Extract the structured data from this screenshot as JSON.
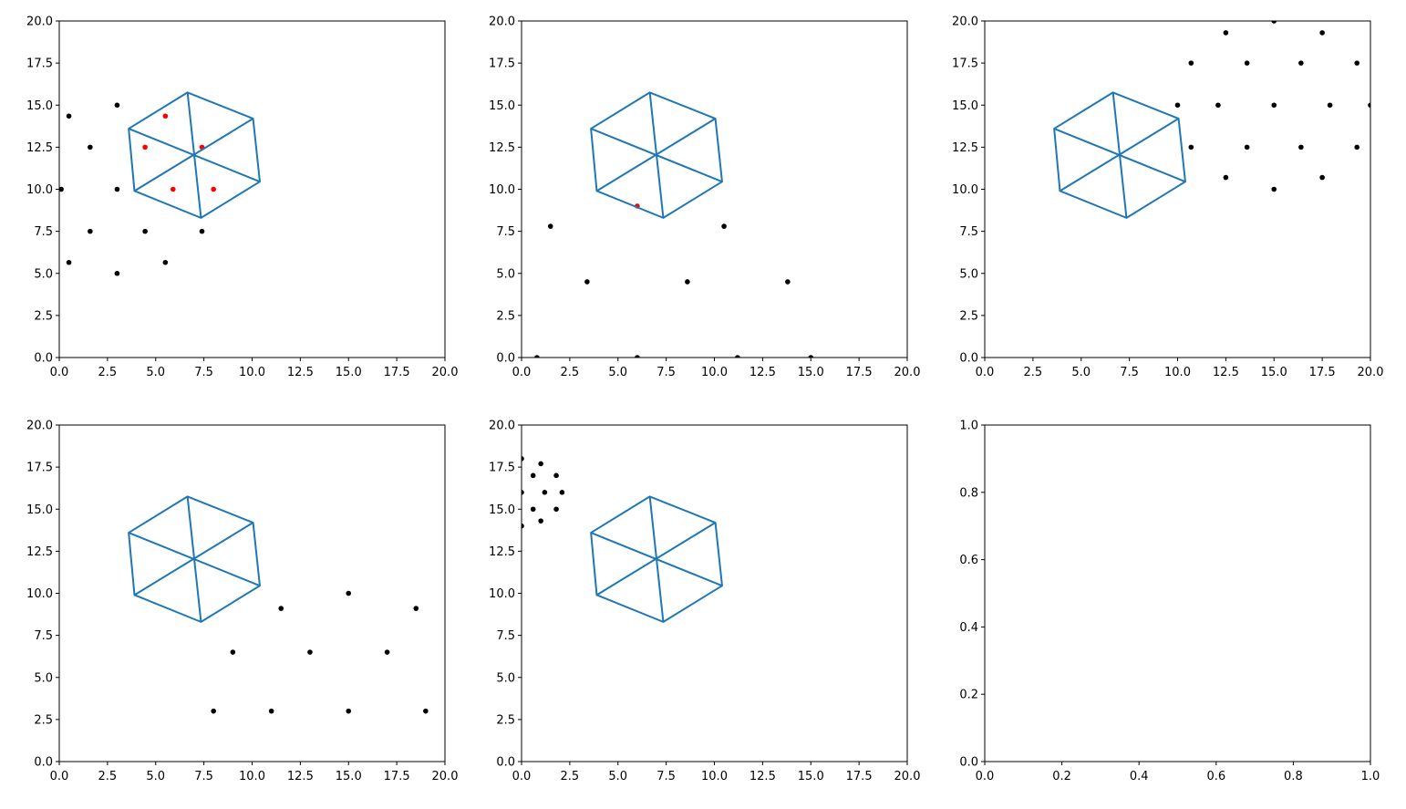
{
  "colors": {
    "hex_line": "#1f77b4",
    "point_black": "#000000",
    "point_red": "#ff0000"
  },
  "chart_data": [
    {
      "type": "scatter",
      "xlim": [
        0,
        20
      ],
      "ylim": [
        0,
        20
      ],
      "xticks": [
        "0.0",
        "2.5",
        "5.0",
        "7.5",
        "10.0",
        "12.5",
        "15.0",
        "17.5",
        "20.0"
      ],
      "yticks": [
        "0.0",
        "2.5",
        "5.0",
        "7.5",
        "10.0",
        "12.5",
        "15.0",
        "17.5",
        "20.0"
      ],
      "hexagon": {
        "center": [
          7.0,
          12.0
        ],
        "vertices": [
          [
            6.65,
            15.75
          ],
          [
            10.05,
            14.2
          ],
          [
            10.4,
            10.45
          ],
          [
            7.35,
            8.3
          ],
          [
            3.9,
            9.9
          ],
          [
            3.6,
            13.6
          ]
        ]
      },
      "points_black": [
        [
          0.5,
          14.35
        ],
        [
          3.0,
          15.0
        ],
        [
          1.6,
          12.5
        ],
        [
          0.1,
          10.0
        ],
        [
          3.0,
          10.0
        ],
        [
          1.6,
          7.5
        ],
        [
          4.45,
          7.5
        ],
        [
          7.4,
          7.5
        ],
        [
          0.5,
          5.65
        ],
        [
          3.0,
          5.0
        ],
        [
          5.5,
          5.65
        ]
      ],
      "points_red": [
        [
          5.5,
          14.35
        ],
        [
          4.45,
          12.5
        ],
        [
          7.4,
          12.5
        ],
        [
          5.9,
          10.0
        ],
        [
          8.0,
          10.0
        ]
      ]
    },
    {
      "type": "scatter",
      "xlim": [
        0,
        20
      ],
      "ylim": [
        0,
        20
      ],
      "xticks": [
        "0.0",
        "2.5",
        "5.0",
        "7.5",
        "10.0",
        "12.5",
        "15.0",
        "17.5",
        "20.0"
      ],
      "yticks": [
        "0.0",
        "2.5",
        "5.0",
        "7.5",
        "10.0",
        "12.5",
        "15.0",
        "17.5",
        "20.0"
      ],
      "hexagon": {
        "center": [
          7.0,
          12.0
        ],
        "vertices": [
          [
            6.65,
            15.75
          ],
          [
            10.05,
            14.2
          ],
          [
            10.4,
            10.45
          ],
          [
            7.35,
            8.3
          ],
          [
            3.9,
            9.9
          ],
          [
            3.6,
            13.6
          ]
        ]
      },
      "points_black": [
        [
          1.5,
          7.8
        ],
        [
          10.5,
          7.8
        ],
        [
          3.4,
          4.5
        ],
        [
          8.6,
          4.5
        ],
        [
          13.8,
          4.5
        ],
        [
          0.8,
          0.0
        ],
        [
          6.0,
          0.0
        ],
        [
          11.2,
          0.0
        ],
        [
          15.0,
          0.0
        ]
      ],
      "points_red": [
        [
          6.0,
          9.0
        ]
      ]
    },
    {
      "type": "scatter",
      "xlim": [
        0,
        20
      ],
      "ylim": [
        0,
        20
      ],
      "xticks": [
        "0.0",
        "2.5",
        "5.0",
        "7.5",
        "10.0",
        "12.5",
        "15.0",
        "17.5",
        "20.0"
      ],
      "yticks": [
        "0.0",
        "2.5",
        "5.0",
        "7.5",
        "10.0",
        "12.5",
        "15.0",
        "17.5",
        "20.0"
      ],
      "hexagon": {
        "center": [
          7.0,
          12.0
        ],
        "vertices": [
          [
            6.65,
            15.75
          ],
          [
            10.05,
            14.2
          ],
          [
            10.4,
            10.45
          ],
          [
            7.35,
            8.3
          ],
          [
            3.9,
            9.9
          ],
          [
            3.6,
            13.6
          ]
        ]
      },
      "points_black": [
        [
          12.5,
          19.3
        ],
        [
          15.0,
          20.0
        ],
        [
          17.5,
          19.3
        ],
        [
          10.7,
          17.5
        ],
        [
          13.6,
          17.5
        ],
        [
          16.4,
          17.5
        ],
        [
          19.3,
          17.5
        ],
        [
          10.0,
          15.0
        ],
        [
          12.1,
          15.0
        ],
        [
          15.0,
          15.0
        ],
        [
          17.9,
          15.0
        ],
        [
          20.0,
          15.0
        ],
        [
          10.7,
          12.5
        ],
        [
          13.6,
          12.5
        ],
        [
          16.4,
          12.5
        ],
        [
          19.3,
          12.5
        ],
        [
          12.5,
          10.7
        ],
        [
          17.5,
          10.7
        ],
        [
          15.0,
          10.0
        ]
      ],
      "points_red": []
    },
    {
      "type": "scatter",
      "xlim": [
        0,
        20
      ],
      "ylim": [
        0,
        20
      ],
      "xticks": [
        "0.0",
        "2.5",
        "5.0",
        "7.5",
        "10.0",
        "12.5",
        "15.0",
        "17.5",
        "20.0"
      ],
      "yticks": [
        "0.0",
        "2.5",
        "5.0",
        "7.5",
        "10.0",
        "12.5",
        "15.0",
        "17.5",
        "20.0"
      ],
      "hexagon": {
        "center": [
          7.0,
          12.0
        ],
        "vertices": [
          [
            6.65,
            15.75
          ],
          [
            10.05,
            14.2
          ],
          [
            10.4,
            10.45
          ],
          [
            7.35,
            8.3
          ],
          [
            3.9,
            9.9
          ],
          [
            3.6,
            13.6
          ]
        ]
      },
      "points_black": [
        [
          15.0,
          10.0
        ],
        [
          11.5,
          9.1
        ],
        [
          18.5,
          9.1
        ],
        [
          9.0,
          6.5
        ],
        [
          13.0,
          6.5
        ],
        [
          17.0,
          6.5
        ],
        [
          8.0,
          3.0
        ],
        [
          11.0,
          3.0
        ],
        [
          15.0,
          3.0
        ],
        [
          19.0,
          3.0
        ]
      ],
      "points_red": []
    },
    {
      "type": "scatter",
      "xlim": [
        0,
        20
      ],
      "ylim": [
        0,
        20
      ],
      "xticks": [
        "0.0",
        "2.5",
        "5.0",
        "7.5",
        "10.0",
        "12.5",
        "15.0",
        "17.5",
        "20.0"
      ],
      "yticks": [
        "0.0",
        "2.5",
        "5.0",
        "7.5",
        "10.0",
        "12.5",
        "15.0",
        "17.5",
        "20.0"
      ],
      "hexagon": {
        "center": [
          7.0,
          12.0
        ],
        "vertices": [
          [
            6.65,
            15.75
          ],
          [
            10.05,
            14.2
          ],
          [
            10.4,
            10.45
          ],
          [
            7.35,
            8.3
          ],
          [
            3.9,
            9.9
          ],
          [
            3.6,
            13.6
          ]
        ]
      },
      "points_black": [
        [
          0.0,
          18.0
        ],
        [
          1.0,
          17.7
        ],
        [
          0.6,
          17.0
        ],
        [
          1.8,
          17.0
        ],
        [
          0.0,
          16.0
        ],
        [
          1.2,
          16.0
        ],
        [
          2.1,
          16.0
        ],
        [
          0.6,
          15.0
        ],
        [
          1.8,
          15.0
        ],
        [
          1.0,
          14.3
        ],
        [
          0.0,
          14.0
        ]
      ],
      "points_red": []
    },
    {
      "type": "scatter",
      "xlim": [
        0,
        1
      ],
      "ylim": [
        0,
        1
      ],
      "xticks": [
        "0.0",
        "0.2",
        "0.4",
        "0.6",
        "0.8",
        "1.0"
      ],
      "yticks": [
        "0.0",
        "0.2",
        "0.4",
        "0.6",
        "0.8",
        "1.0"
      ],
      "points_black": [],
      "points_red": []
    }
  ]
}
